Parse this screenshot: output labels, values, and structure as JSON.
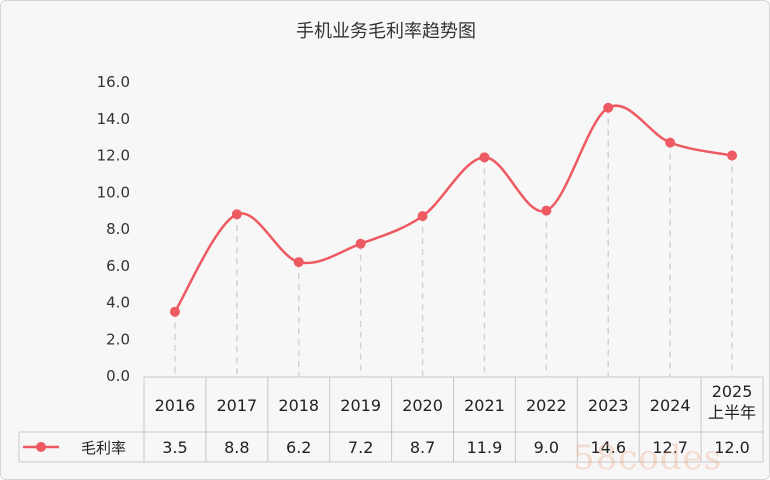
{
  "chart_data": {
    "type": "line",
    "title": "手机业务毛利率趋势图",
    "categories": [
      "2016",
      "2017",
      "2018",
      "2019",
      "2020",
      "2021",
      "2022",
      "2023",
      "2024",
      "2025上半年"
    ],
    "category_lines": [
      [
        "2016"
      ],
      [
        "2017"
      ],
      [
        "2018"
      ],
      [
        "2019"
      ],
      [
        "2020"
      ],
      [
        "2021"
      ],
      [
        "2022"
      ],
      [
        "2023"
      ],
      [
        "2024"
      ],
      [
        "2025",
        "上半年"
      ]
    ],
    "series": [
      {
        "name": "毛利率",
        "values": [
          3.5,
          8.8,
          6.2,
          7.2,
          8.7,
          11.9,
          9.0,
          14.6,
          12.7,
          12.0
        ],
        "labels": [
          "3.5",
          "8.8",
          "6.2",
          "7.2",
          "8.7",
          "11.9",
          "9.0",
          "14.6",
          "12.7",
          "12.0"
        ]
      }
    ],
    "yticks": [
      "0.0",
      "2.0",
      "4.0",
      "6.0",
      "8.0",
      "10.0",
      "12.0",
      "14.0",
      "16.0"
    ],
    "ylim": [
      0,
      16
    ],
    "xlabel": "",
    "ylabel": "",
    "grid": false,
    "data_table": true,
    "legend": "data-table-left",
    "colors": {
      "line": "#ee5a61",
      "drop_line": "#d2d2d2",
      "table_border": "#c8c8c8",
      "background": "#f7f7f7"
    }
  },
  "watermark": "58codes"
}
